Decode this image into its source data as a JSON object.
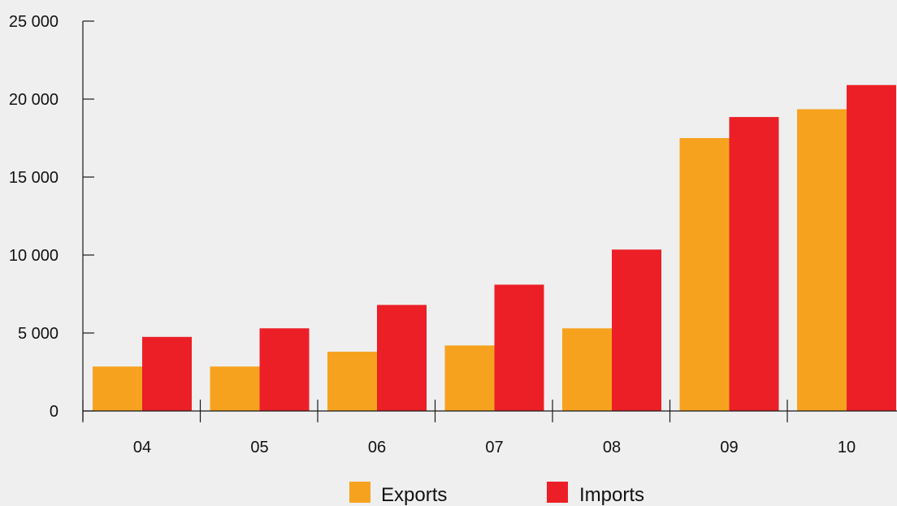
{
  "chart_data": {
    "type": "bar",
    "title": "",
    "xlabel": "",
    "ylabel": "",
    "categories": [
      "04",
      "05",
      "06",
      "07",
      "08",
      "09",
      "10"
    ],
    "series": [
      {
        "name": "Exports",
        "color": "#f7a21e",
        "values": [
          2850,
          2850,
          3800,
          4200,
          5300,
          17500,
          19350
        ]
      },
      {
        "name": "Imports",
        "color": "#ec1f26",
        "values": [
          4750,
          5300,
          6800,
          8100,
          10350,
          18850,
          20900
        ]
      }
    ],
    "ylim": [
      0,
      25000
    ],
    "yticks": [
      0,
      5000,
      10000,
      15000,
      20000,
      25000
    ],
    "ytick_labels": [
      "0",
      "5 000",
      "10 000",
      "15 000",
      "20 000",
      "25 000"
    ],
    "grid": false,
    "legend_position": "bottom-center"
  }
}
